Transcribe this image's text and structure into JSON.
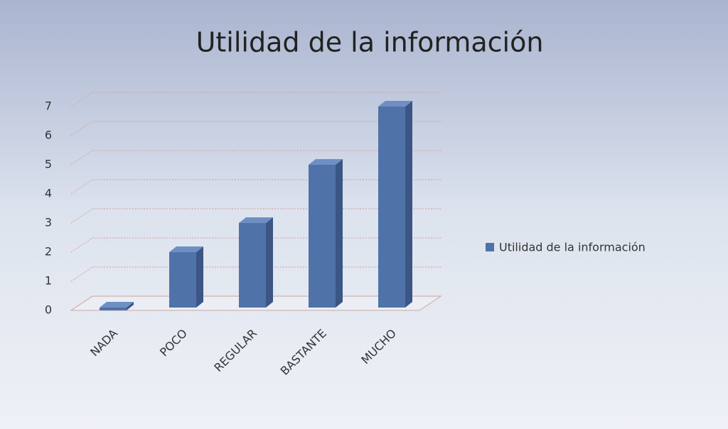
{
  "chart_data": {
    "type": "bar",
    "title": "Utilidad de la información",
    "categories": [
      "NADA",
      "POCO",
      "REGULAR",
      "BASTANTE",
      "MUCHO"
    ],
    "series": [
      {
        "name": "Utilidad de la información",
        "color": "#4f72a8",
        "values": [
          0,
          2,
          3,
          5,
          7
        ]
      }
    ],
    "ylim": [
      0,
      7
    ],
    "yticks": [
      0,
      1,
      2,
      3,
      4,
      5,
      6,
      7
    ],
    "grid": true,
    "legend": "right"
  }
}
